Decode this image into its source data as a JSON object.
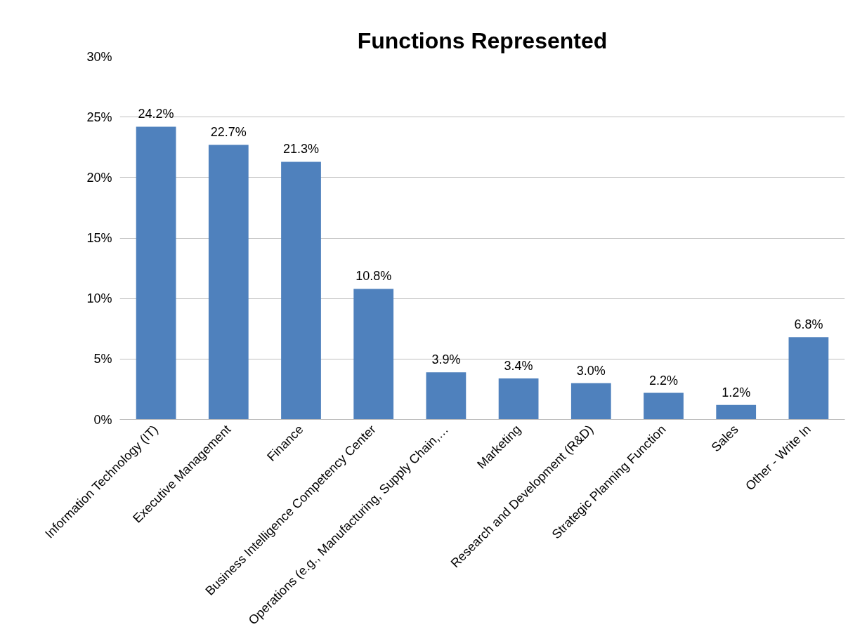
{
  "chart_data": {
    "type": "bar",
    "title": "Functions Represented",
    "categories": [
      "Information Technology (IT)",
      "Executive Management",
      "Finance",
      "Business Intelligence Competency Center",
      "Operations (e.g., Manufacturing, Supply Chain,…",
      "Marketing",
      "Research and Development (R&D)",
      "Strategic Planning Function",
      "Sales",
      "Other - Write In"
    ],
    "values": [
      24.2,
      22.7,
      21.3,
      10.8,
      3.9,
      3.4,
      3.0,
      2.2,
      1.2,
      6.8
    ],
    "value_labels": [
      "24.2%",
      "22.7%",
      "21.3%",
      "10.8%",
      "3.9%",
      "3.4%",
      "3.0%",
      "2.2%",
      "1.2%",
      "6.8%"
    ],
    "color": "#4f81bd",
    "ylim": [
      0,
      30
    ],
    "yticks": [
      {
        "value": 0,
        "label": "0%"
      },
      {
        "value": 5,
        "label": "5%"
      },
      {
        "value": 10,
        "label": "10%"
      },
      {
        "value": 15,
        "label": "15%"
      },
      {
        "value": 20,
        "label": "20%"
      },
      {
        "value": 25,
        "label": "25%"
      },
      {
        "value": 30,
        "label": "30%"
      }
    ],
    "grid": "y"
  }
}
